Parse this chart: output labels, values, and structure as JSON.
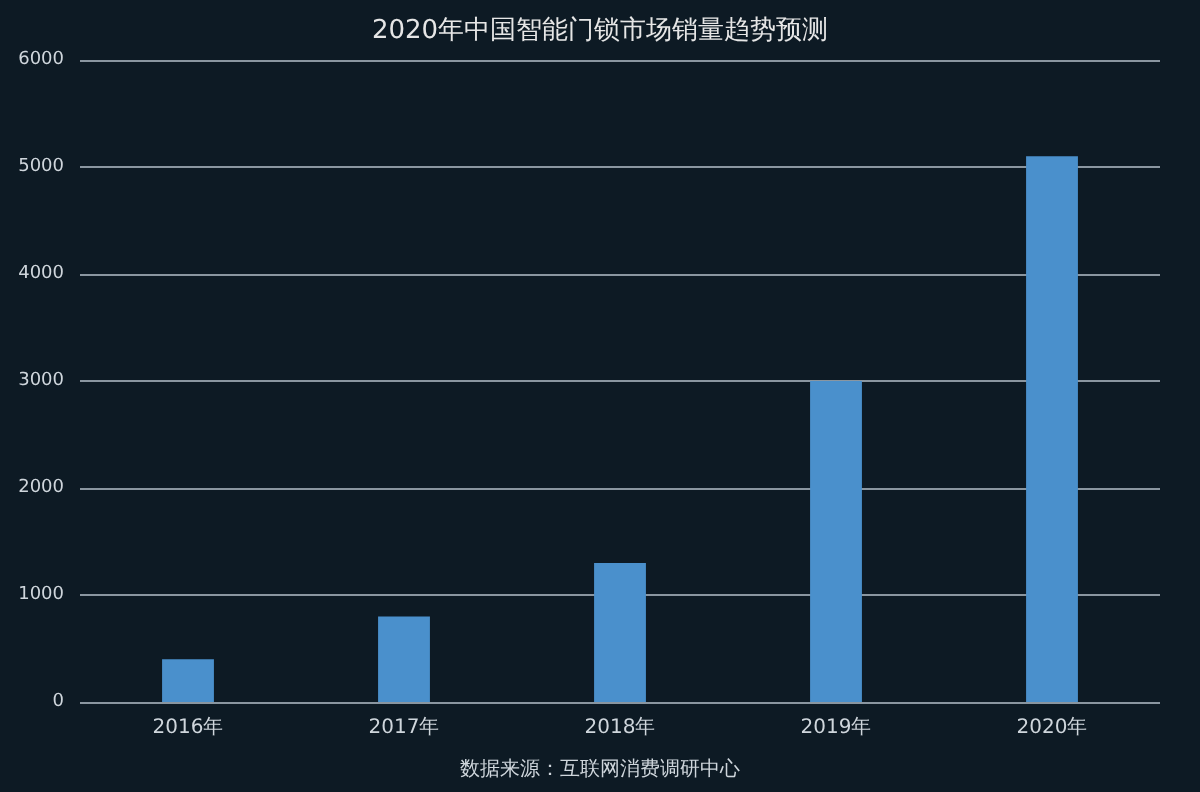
{
  "chart_data": {
    "type": "bar",
    "title": "2020年中国智能门锁市场销量趋势预测",
    "categories": [
      "2016年",
      "2017年",
      "2018年",
      "2019年",
      "2020年"
    ],
    "values": [
      400,
      800,
      1300,
      3000,
      5100
    ],
    "color": "#4a90cc",
    "ylim": [
      0,
      6000
    ],
    "yticks": [
      0,
      1000,
      2000,
      3000,
      4000,
      5000,
      6000
    ],
    "grid": "y",
    "annotations": [
      "数据来源：互联网消费调研中心"
    ]
  }
}
